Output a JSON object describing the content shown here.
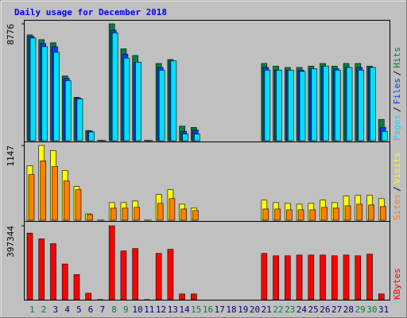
{
  "chart_data": [
    {
      "type": "bar",
      "title": "Daily usage for December 2018",
      "categories": [
        "1",
        "2",
        "3",
        "4",
        "5",
        "6",
        "7",
        "8",
        "9",
        "10",
        "11",
        "12",
        "13",
        "14",
        "15",
        "16",
        "17",
        "18",
        "19",
        "20",
        "21",
        "22",
        "23",
        "24",
        "25",
        "26",
        "27",
        "28",
        "29",
        "30",
        "31"
      ],
      "label_colors": [
        "#008040",
        "#008040",
        "#000080",
        "#000080",
        "#000080",
        "#000080",
        "#000080",
        "#008040",
        "#008040",
        "#000080",
        "#000080",
        "#000080",
        "#000080",
        "#000080",
        "#008040",
        "#008040",
        "#000080",
        "#000080",
        "#000080",
        "#000080",
        "#000080",
        "#008040",
        "#008040",
        "#000080",
        "#000080",
        "#000080",
        "#000080",
        "#000080",
        "#008040",
        "#008040",
        "#000080"
      ],
      "legend_separator": "/",
      "ylim": [
        0,
        8776
      ],
      "yticks": [
        8776
      ],
      "series": [
        {
          "name": "Hits",
          "color": "#008040",
          "values": [
            7946,
            7590,
            7353,
            4862,
            3261,
            771,
            30,
            8776,
            6900,
            6400,
            30,
            5800,
            6100,
            1100,
            1000,
            0,
            0,
            0,
            0,
            0,
            5800,
            5600,
            5500,
            5500,
            5600,
            5800,
            5600,
            5800,
            5800,
            5600,
            1600
          ]
        },
        {
          "name": "Files",
          "color": "#0040ff",
          "values": [
            7827,
            7294,
            7056,
            4685,
            3202,
            712,
            20,
            8300,
            6500,
            5900,
            20,
            5500,
            6000,
            700,
            800,
            0,
            0,
            0,
            0,
            0,
            5500,
            5300,
            5300,
            5300,
            5400,
            5600,
            5400,
            5500,
            5500,
            5500,
            1000
          ]
        },
        {
          "name": "Pages",
          "color": "#00e0ff",
          "values": [
            7709,
            7056,
            6641,
            4507,
            3143,
            652,
            15,
            8100,
            6200,
            5900,
            15,
            5300,
            6000,
            500,
            500,
            0,
            0,
            0,
            0,
            0,
            5300,
            5300,
            5300,
            5200,
            5400,
            5600,
            5300,
            5500,
            5300,
            5500,
            700
          ]
        }
      ]
    },
    {
      "type": "bar",
      "ylim": [
        0,
        1147
      ],
      "yticks": [
        1147
      ],
      "series": [
        {
          "name": "Visits",
          "color": "#ffff00",
          "values": [
            837,
            1147,
            1070,
            763,
            517,
            98,
            2,
            270,
            270,
            295,
            2,
            394,
            468,
            246,
            185,
            0,
            0,
            0,
            0,
            0,
            308,
            270,
            258,
            246,
            258,
            308,
            270,
            370,
            381,
            381,
            332
          ]
        },
        {
          "name": "Sites",
          "color": "#ff8000",
          "values": [
            700,
            910,
            824,
            603,
            468,
            86,
            1,
            185,
            185,
            197,
            1,
            258,
            332,
            172,
            148,
            0,
            0,
            0,
            0,
            0,
            172,
            172,
            160,
            160,
            160,
            197,
            185,
            221,
            246,
            234,
            209
          ]
        }
      ]
    },
    {
      "type": "bar",
      "ylim": [
        0,
        397344
      ],
      "yticks": [
        397344
      ],
      "series": [
        {
          "name": "KBytes",
          "color": "#ff0000",
          "values": [
            358000,
            327000,
            301000,
            192000,
            135000,
            35000,
            1000,
            397344,
            262000,
            275000,
            500,
            249000,
            271000,
            31000,
            31000,
            0,
            0,
            0,
            0,
            0,
            249000,
            236000,
            236000,
            240000,
            240000,
            240000,
            236000,
            240000,
            236000,
            245000,
            31000
          ]
        }
      ]
    }
  ]
}
